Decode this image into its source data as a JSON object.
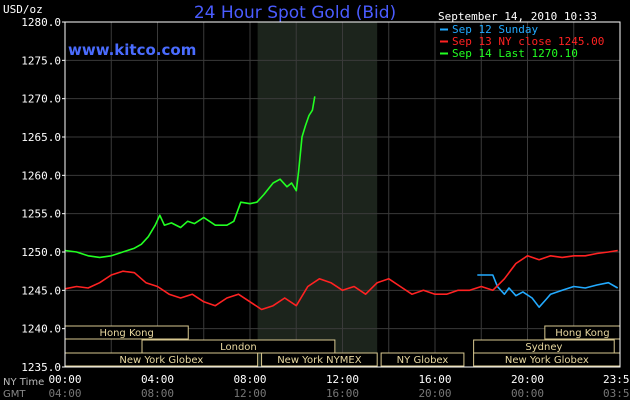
{
  "chart_data": {
    "type": "line",
    "title": "24 Hour Spot Gold (Bid)",
    "ylabel": "USD/oz",
    "website": "www.kitco.com",
    "date_label": "September 14, 2010 10:33",
    "ylim": [
      1235,
      1280
    ],
    "y_ticks": [
      "1235.0",
      "1240.0",
      "1245.0",
      "1250.0",
      "1255.0",
      "1260.0",
      "1265.0",
      "1270.0",
      "1275.0",
      "1280.0"
    ],
    "y_tick_values": [
      1235,
      1240,
      1245,
      1250,
      1255,
      1260,
      1265,
      1270,
      1275,
      1280
    ],
    "x_row_labels": {
      "ny": "NY Time",
      "gmt": "GMT"
    },
    "x_ticks_ny": [
      "00:00",
      "04:00",
      "08:00",
      "12:00",
      "16:00",
      "20:00",
      "23:59"
    ],
    "x_ticks_gmt": [
      "04:00",
      "08:00",
      "12:00",
      "16:00",
      "20:00",
      "00:00",
      "03:59"
    ],
    "x_tick_hours": [
      0,
      4,
      8,
      12,
      16,
      20,
      23.983
    ],
    "grid": true,
    "shaded_hours": [
      8.33,
      13.5
    ],
    "legend": [
      {
        "text": "Sep 12 Sunday",
        "color": "#22aaff"
      },
      {
        "text": "Sep 13 NY close 1245.00",
        "color": "#ff2222"
      },
      {
        "text": "Sep 14 Last 1270.10",
        "color": "#22ff22"
      }
    ],
    "series": [
      {
        "name": "Sep 12 Sunday",
        "color": "#22aaff",
        "points": [
          [
            17.83,
            1247.0
          ],
          [
            18.5,
            1247.0
          ],
          [
            18.7,
            1245.5
          ],
          [
            19.0,
            1244.5
          ],
          [
            19.2,
            1245.3
          ],
          [
            19.5,
            1244.3
          ],
          [
            19.8,
            1244.8
          ],
          [
            20.2,
            1244.0
          ],
          [
            20.5,
            1242.8
          ],
          [
            20.8,
            1243.8
          ],
          [
            21.0,
            1244.5
          ],
          [
            21.5,
            1245.0
          ],
          [
            22.0,
            1245.5
          ],
          [
            22.5,
            1245.3
          ],
          [
            23.0,
            1245.7
          ],
          [
            23.5,
            1246.0
          ],
          [
            23.9,
            1245.3
          ]
        ]
      },
      {
        "name": "Sep 13 NY close 1245.00",
        "color": "#ff2222",
        "points": [
          [
            0,
            1245.2
          ],
          [
            0.5,
            1245.5
          ],
          [
            1.0,
            1245.3
          ],
          [
            1.5,
            1246.0
          ],
          [
            2.0,
            1247.0
          ],
          [
            2.5,
            1247.5
          ],
          [
            3.0,
            1247.3
          ],
          [
            3.5,
            1246.0
          ],
          [
            4.0,
            1245.5
          ],
          [
            4.5,
            1244.5
          ],
          [
            5.0,
            1244.0
          ],
          [
            5.5,
            1244.5
          ],
          [
            6.0,
            1243.5
          ],
          [
            6.5,
            1243.0
          ],
          [
            7.0,
            1244.0
          ],
          [
            7.5,
            1244.5
          ],
          [
            8.0,
            1243.5
          ],
          [
            8.5,
            1242.5
          ],
          [
            9.0,
            1243.0
          ],
          [
            9.5,
            1244.0
          ],
          [
            10.0,
            1243.0
          ],
          [
            10.5,
            1245.5
          ],
          [
            11.0,
            1246.5
          ],
          [
            11.5,
            1246.0
          ],
          [
            12.0,
            1245.0
          ],
          [
            12.5,
            1245.5
          ],
          [
            13.0,
            1244.5
          ],
          [
            13.5,
            1246.0
          ],
          [
            14.0,
            1246.5
          ],
          [
            14.5,
            1245.5
          ],
          [
            15.0,
            1244.5
          ],
          [
            15.5,
            1245.0
          ],
          [
            16.0,
            1244.5
          ],
          [
            16.5,
            1244.5
          ],
          [
            17.0,
            1245.0
          ],
          [
            17.5,
            1245.0
          ],
          [
            18.0,
            1245.5
          ],
          [
            18.5,
            1245.0
          ],
          [
            19.0,
            1246.5
          ],
          [
            19.5,
            1248.5
          ],
          [
            20.0,
            1249.5
          ],
          [
            20.5,
            1249.0
          ],
          [
            21.0,
            1249.5
          ],
          [
            21.5,
            1249.3
          ],
          [
            22.0,
            1249.5
          ],
          [
            22.5,
            1249.5
          ],
          [
            23.0,
            1249.8
          ],
          [
            23.5,
            1250.0
          ],
          [
            23.9,
            1250.2
          ]
        ]
      },
      {
        "name": "Sep 14 Last 1270.10",
        "color": "#22ff22",
        "points": [
          [
            0,
            1250.2
          ],
          [
            0.5,
            1250.0
          ],
          [
            1.0,
            1249.5
          ],
          [
            1.5,
            1249.3
          ],
          [
            2.0,
            1249.5
          ],
          [
            2.5,
            1250.0
          ],
          [
            3.0,
            1250.5
          ],
          [
            3.3,
            1251.0
          ],
          [
            3.6,
            1252.0
          ],
          [
            3.9,
            1253.5
          ],
          [
            4.1,
            1254.8
          ],
          [
            4.3,
            1253.5
          ],
          [
            4.6,
            1253.8
          ],
          [
            5.0,
            1253.2
          ],
          [
            5.3,
            1254.0
          ],
          [
            5.6,
            1253.7
          ],
          [
            6.0,
            1254.5
          ],
          [
            6.5,
            1253.5
          ],
          [
            7.0,
            1253.5
          ],
          [
            7.3,
            1254.0
          ],
          [
            7.6,
            1256.5
          ],
          [
            8.0,
            1256.3
          ],
          [
            8.3,
            1256.5
          ],
          [
            8.6,
            1257.5
          ],
          [
            9.0,
            1259.0
          ],
          [
            9.3,
            1259.5
          ],
          [
            9.6,
            1258.5
          ],
          [
            9.8,
            1259.0
          ],
          [
            10.0,
            1258.0
          ],
          [
            10.1,
            1260.5
          ],
          [
            10.25,
            1265.0
          ],
          [
            10.4,
            1266.5
          ],
          [
            10.55,
            1267.8
          ],
          [
            10.7,
            1268.5
          ],
          [
            10.8,
            1270.3
          ]
        ]
      }
    ],
    "sessions": [
      {
        "label": "Hong Kong",
        "start": 0,
        "end": 5.33,
        "row": 0
      },
      {
        "label": "London",
        "start": 3.33,
        "end": 11.67,
        "row": 1
      },
      {
        "label": "New York Globex",
        "start": 0,
        "end": 8.33,
        "row": 2
      },
      {
        "label": "New York NYMEX",
        "start": 8.5,
        "end": 13.5,
        "row": 2
      },
      {
        "label": "NY Globex",
        "start": 13.67,
        "end": 17.25,
        "row": 2
      },
      {
        "label": "Sydney",
        "start": 17.67,
        "end": 23.75,
        "row": 1
      },
      {
        "label": "Hong Kong",
        "start": 20.75,
        "end": 24,
        "row": 0
      },
      {
        "label": "New York Globex",
        "start": 17.67,
        "end": 24,
        "row": 2
      }
    ]
  }
}
